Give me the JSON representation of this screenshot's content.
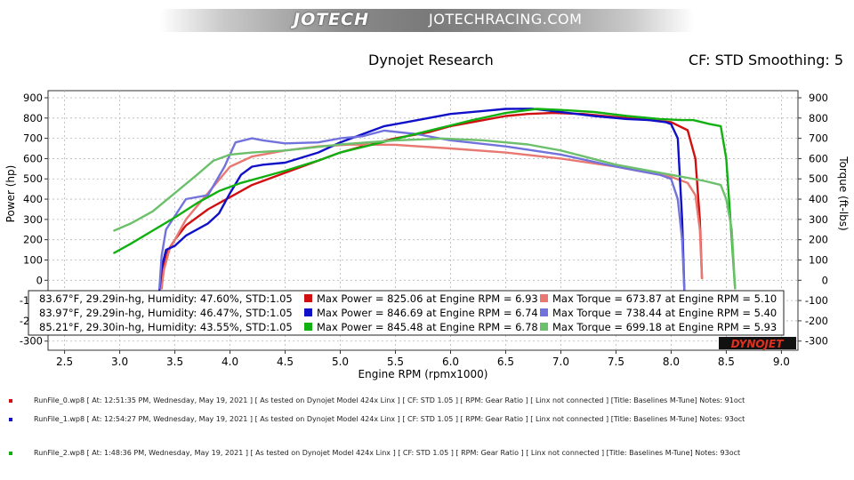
{
  "header": {
    "brand": "JOTECH",
    "site": "JOTECHRACING.COM",
    "title": "Dynojet Research",
    "cf": "CF: STD Smoothing: 5"
  },
  "chart_data": {
    "type": "line",
    "xlabel": "Engine RPM (rpmx1000)",
    "ylabel_left": "Power (hp)",
    "ylabel_right": "Torque (ft-lbs)",
    "xlim": [
      2.35,
      9.15
    ],
    "ylim": [
      -345,
      935
    ],
    "x_ticks": [
      2.5,
      3.0,
      3.5,
      4.0,
      4.5,
      5.0,
      5.5,
      6.0,
      6.5,
      7.0,
      7.5,
      8.0,
      8.5,
      9.0
    ],
    "y_ticks": [
      -300,
      -200,
      -100,
      0,
      100,
      200,
      300,
      400,
      500,
      600,
      700,
      800,
      900
    ],
    "grid": true,
    "logo": "DYNOJET",
    "legend": [
      {
        "conditions": "83.67°F, 29.29in-hg, Humidity: 47.60%, STD:1.05",
        "power": "Max Power = 825.06 at Engine RPM = 6.93",
        "torque": "Max Torque = 673.87 at Engine RPM = 5.10",
        "power_color": "#d01010",
        "torque_color": "#e87872"
      },
      {
        "conditions": "83.97°F, 29.29in-hg, Humidity: 46.47%, STD:1.05",
        "power": "Max Power = 846.69 at Engine RPM = 6.74",
        "torque": "Max Torque = 738.44 at Engine RPM = 5.40",
        "power_color": "#1010c8",
        "torque_color": "#7272dc"
      },
      {
        "conditions": "85.21°F, 29.30in-hg, Humidity: 43.55%, STD:1.05",
        "power": "Max Power = 845.48 at Engine RPM = 6.78",
        "torque": "Max Torque = 699.18 at Engine RPM = 5.93",
        "power_color": "#10b010",
        "torque_color": "#6cc06c"
      }
    ],
    "series": [
      {
        "kind": "power",
        "run": 0,
        "color": "#d01010",
        "x": [
          3.38,
          3.39,
          3.42,
          3.5,
          3.6,
          3.8,
          4.0,
          4.2,
          4.5,
          4.8,
          5.0,
          5.2,
          5.5,
          5.8,
          6.0,
          6.3,
          6.5,
          6.7,
          6.93,
          7.2,
          7.5,
          7.8,
          8.0,
          8.15,
          8.22,
          8.26,
          8.28
        ],
        "y": [
          -40,
          50,
          130,
          200,
          270,
          350,
          410,
          470,
          530,
          590,
          630,
          660,
          700,
          730,
          760,
          790,
          810,
          820,
          825,
          820,
          805,
          790,
          780,
          740,
          600,
          300,
          10
        ]
      },
      {
        "kind": "torque",
        "run": 0,
        "color": "#e87872",
        "x": [
          3.38,
          3.4,
          3.45,
          3.6,
          3.8,
          4.0,
          4.2,
          4.5,
          4.8,
          5.1,
          5.5,
          6.0,
          6.5,
          7.0,
          7.5,
          7.8,
          8.0,
          8.15,
          8.22,
          8.26,
          8.28
        ],
        "y": [
          -40,
          50,
          150,
          300,
          430,
          560,
          610,
          640,
          660,
          670,
          668,
          650,
          630,
          600,
          560,
          530,
          510,
          480,
          420,
          250,
          10
        ]
      },
      {
        "kind": "power",
        "run": 1,
        "color": "#1010c8",
        "x": [
          3.36,
          3.38,
          3.42,
          3.5,
          3.6,
          3.8,
          3.9,
          4.0,
          4.1,
          4.2,
          4.3,
          4.5,
          4.8,
          5.0,
          5.2,
          5.4,
          5.6,
          5.8,
          6.0,
          6.3,
          6.5,
          6.74,
          7.0,
          7.3,
          7.6,
          7.8,
          7.95,
          8.0,
          8.06,
          8.1,
          8.12
        ],
        "y": [
          -50,
          60,
          150,
          170,
          220,
          280,
          330,
          430,
          520,
          560,
          570,
          580,
          630,
          680,
          720,
          760,
          780,
          800,
          820,
          835,
          845,
          846,
          830,
          810,
          795,
          790,
          780,
          770,
          700,
          300,
          -50
        ]
      },
      {
        "kind": "torque",
        "run": 1,
        "color": "#7272dc",
        "x": [
          3.36,
          3.38,
          3.42,
          3.6,
          3.8,
          3.95,
          4.05,
          4.2,
          4.3,
          4.5,
          4.8,
          5.0,
          5.2,
          5.4,
          5.7,
          6.0,
          6.5,
          7.0,
          7.5,
          7.8,
          7.9,
          8.0,
          8.06,
          8.1,
          8.12
        ],
        "y": [
          -40,
          120,
          250,
          400,
          420,
          560,
          680,
          700,
          690,
          675,
          680,
          700,
          710,
          738,
          720,
          690,
          660,
          620,
          560,
          530,
          520,
          500,
          400,
          200,
          -50
        ]
      },
      {
        "kind": "power",
        "run": 2,
        "color": "#10b010",
        "x": [
          2.95,
          3.1,
          3.3,
          3.5,
          3.7,
          3.9,
          4.1,
          4.3,
          4.5,
          4.8,
          5.0,
          5.3,
          5.6,
          5.9,
          6.2,
          6.5,
          6.78,
          7.0,
          7.3,
          7.6,
          7.9,
          8.1,
          8.2,
          8.35,
          8.45,
          8.5,
          8.55,
          8.58
        ],
        "y": [
          135,
          180,
          245,
          310,
          380,
          440,
          480,
          510,
          540,
          590,
          630,
          670,
          710,
          750,
          790,
          825,
          845,
          840,
          830,
          810,
          795,
          790,
          790,
          770,
          760,
          600,
          200,
          -40
        ]
      },
      {
        "kind": "torque",
        "run": 2,
        "color": "#6cc06c",
        "x": [
          2.95,
          3.1,
          3.3,
          3.5,
          3.7,
          3.85,
          4.0,
          4.2,
          4.5,
          5.0,
          5.5,
          5.93,
          6.3,
          6.7,
          7.0,
          7.5,
          7.8,
          8.0,
          8.3,
          8.45,
          8.5,
          8.55,
          8.58
        ],
        "y": [
          245,
          280,
          340,
          430,
          520,
          590,
          620,
          630,
          640,
          670,
          690,
          699,
          690,
          670,
          640,
          570,
          540,
          520,
          490,
          470,
          400,
          250,
          -40
        ]
      }
    ]
  },
  "run_info": [
    {
      "color": "#d01010",
      "text": "RunFile_0.wp8  [ At: 12:51:35 PM, Wednesday, May 19, 2021 ]  [ As tested on Dynojet Model 424x Linx ]  [ CF: STD 1.05 ]  [ RPM: Gear Ratio ]  [ Linx not connected ]  [Title: Baselines M-Tune]   Notes: 91oct"
    },
    {
      "color": "#1010c8",
      "text": "RunFile_1.wp8  [ At: 12:54:27 PM, Wednesday, May 19, 2021 ]  [ As tested on Dynojet Model 424x Linx ]  [ CF: STD 1.05 ]  [ RPM: Gear Ratio ]  [ Linx not connected ]  [Title: Baselines M-Tune]   Notes: 93oct"
    },
    {
      "color": "#10b010",
      "text": "RunFile_2.wp8  [ At: 1:48:36 PM, Wednesday, May 19, 2021 ]  [ As tested on Dynojet Model 424x Linx ]  [ CF: STD 1.05 ]  [ RPM: Gear Ratio ]  [ Linx not connected ]  [Title: Baselines M-Tune]   Notes: 93oct"
    }
  ]
}
